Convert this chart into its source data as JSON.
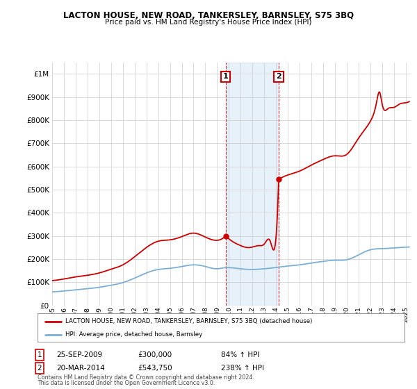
{
  "title": "LACTON HOUSE, NEW ROAD, TANKERSLEY, BARNSLEY, S75 3BQ",
  "subtitle": "Price paid vs. HM Land Registry's House Price Index (HPI)",
  "hpi_label": "HPI: Average price, detached house, Barnsley",
  "house_label": "LACTON HOUSE, NEW ROAD, TANKERSLEY, BARNSLEY, S75 3BQ (detached house)",
  "house_color": "#cc0000",
  "hpi_color": "#7bafd4",
  "point1_date": 2009.73,
  "point1_price": 300000,
  "point2_date": 2014.22,
  "point2_price": 543750,
  "shade_color": "#d0e4f7",
  "shade_alpha": 0.5,
  "xmin": 1995,
  "xmax": 2025.5,
  "ymin": 0,
  "ymax": 1050000,
  "footnote1": "Contains HM Land Registry data © Crown copyright and database right 2024.",
  "footnote2": "This data is licensed under the Open Government Licence v3.0.",
  "background_color": "#ffffff",
  "grid_color": "#cccccc",
  "yticks": [
    0,
    100000,
    200000,
    300000,
    400000,
    500000,
    600000,
    700000,
    800000,
    900000,
    1000000
  ],
  "xticks": [
    1995,
    1996,
    1997,
    1998,
    1999,
    2000,
    2001,
    2002,
    2003,
    2004,
    2005,
    2006,
    2007,
    2008,
    2009,
    2010,
    2011,
    2012,
    2013,
    2014,
    2015,
    2016,
    2017,
    2018,
    2019,
    2020,
    2021,
    2022,
    2023,
    2024,
    2025
  ],
  "hpi_points": [
    [
      1995.0,
      58000
    ],
    [
      1996.0,
      62000
    ],
    [
      1997.0,
      67000
    ],
    [
      1998.0,
      72000
    ],
    [
      1999.0,
      78000
    ],
    [
      2000.0,
      87000
    ],
    [
      2001.0,
      98000
    ],
    [
      2002.0,
      118000
    ],
    [
      2003.0,
      140000
    ],
    [
      2004.0,
      155000
    ],
    [
      2005.0,
      160000
    ],
    [
      2006.0,
      168000
    ],
    [
      2007.0,
      175000
    ],
    [
      2008.0,
      168000
    ],
    [
      2009.0,
      158000
    ],
    [
      2009.73,
      163000
    ],
    [
      2010.0,
      163000
    ],
    [
      2011.0,
      158000
    ],
    [
      2012.0,
      155000
    ],
    [
      2013.0,
      158000
    ],
    [
      2014.22,
      165000
    ],
    [
      2015.0,
      170000
    ],
    [
      2016.0,
      175000
    ],
    [
      2017.0,
      183000
    ],
    [
      2018.0,
      190000
    ],
    [
      2019.0,
      195000
    ],
    [
      2020.0,
      197000
    ],
    [
      2021.0,
      218000
    ],
    [
      2022.0,
      240000
    ],
    [
      2023.0,
      245000
    ],
    [
      2024.0,
      248000
    ],
    [
      2025.3,
      252000
    ]
  ],
  "house_points_before": [
    [
      1995.0,
      107000
    ],
    [
      1996.0,
      114000
    ],
    [
      1997.0,
      123000
    ],
    [
      1998.0,
      130000
    ],
    [
      1999.0,
      140000
    ],
    [
      2000.0,
      156000
    ],
    [
      2001.0,
      175000
    ],
    [
      2002.0,
      210000
    ],
    [
      2003.0,
      250000
    ],
    [
      2004.0,
      277000
    ],
    [
      2005.0,
      283000
    ],
    [
      2006.0,
      297000
    ],
    [
      2007.0,
      312000
    ],
    [
      2008.0,
      295000
    ],
    [
      2009.0,
      281000
    ],
    [
      2009.73,
      300000
    ]
  ],
  "house_points_between": [
    [
      2009.73,
      300000
    ],
    [
      2010.5,
      270000
    ],
    [
      2011.0,
      258000
    ],
    [
      2011.5,
      250000
    ],
    [
      2012.0,
      252000
    ],
    [
      2012.5,
      258000
    ],
    [
      2013.0,
      265000
    ],
    [
      2013.5,
      278000
    ],
    [
      2014.0,
      295000
    ],
    [
      2014.22,
      543750
    ]
  ],
  "house_points_after": [
    [
      2014.22,
      543750
    ],
    [
      2015.0,
      563000
    ],
    [
      2016.0,
      580000
    ],
    [
      2017.0,
      606000
    ],
    [
      2018.0,
      630000
    ],
    [
      2019.0,
      646000
    ],
    [
      2020.0,
      652000
    ],
    [
      2021.0,
      722000
    ],
    [
      2022.0,
      795000
    ],
    [
      2022.5,
      870000
    ],
    [
      2022.8,
      920000
    ],
    [
      2023.0,
      870000
    ],
    [
      2023.5,
      850000
    ],
    [
      2024.0,
      855000
    ],
    [
      2024.5,
      870000
    ],
    [
      2025.0,
      875000
    ],
    [
      2025.3,
      880000
    ]
  ]
}
